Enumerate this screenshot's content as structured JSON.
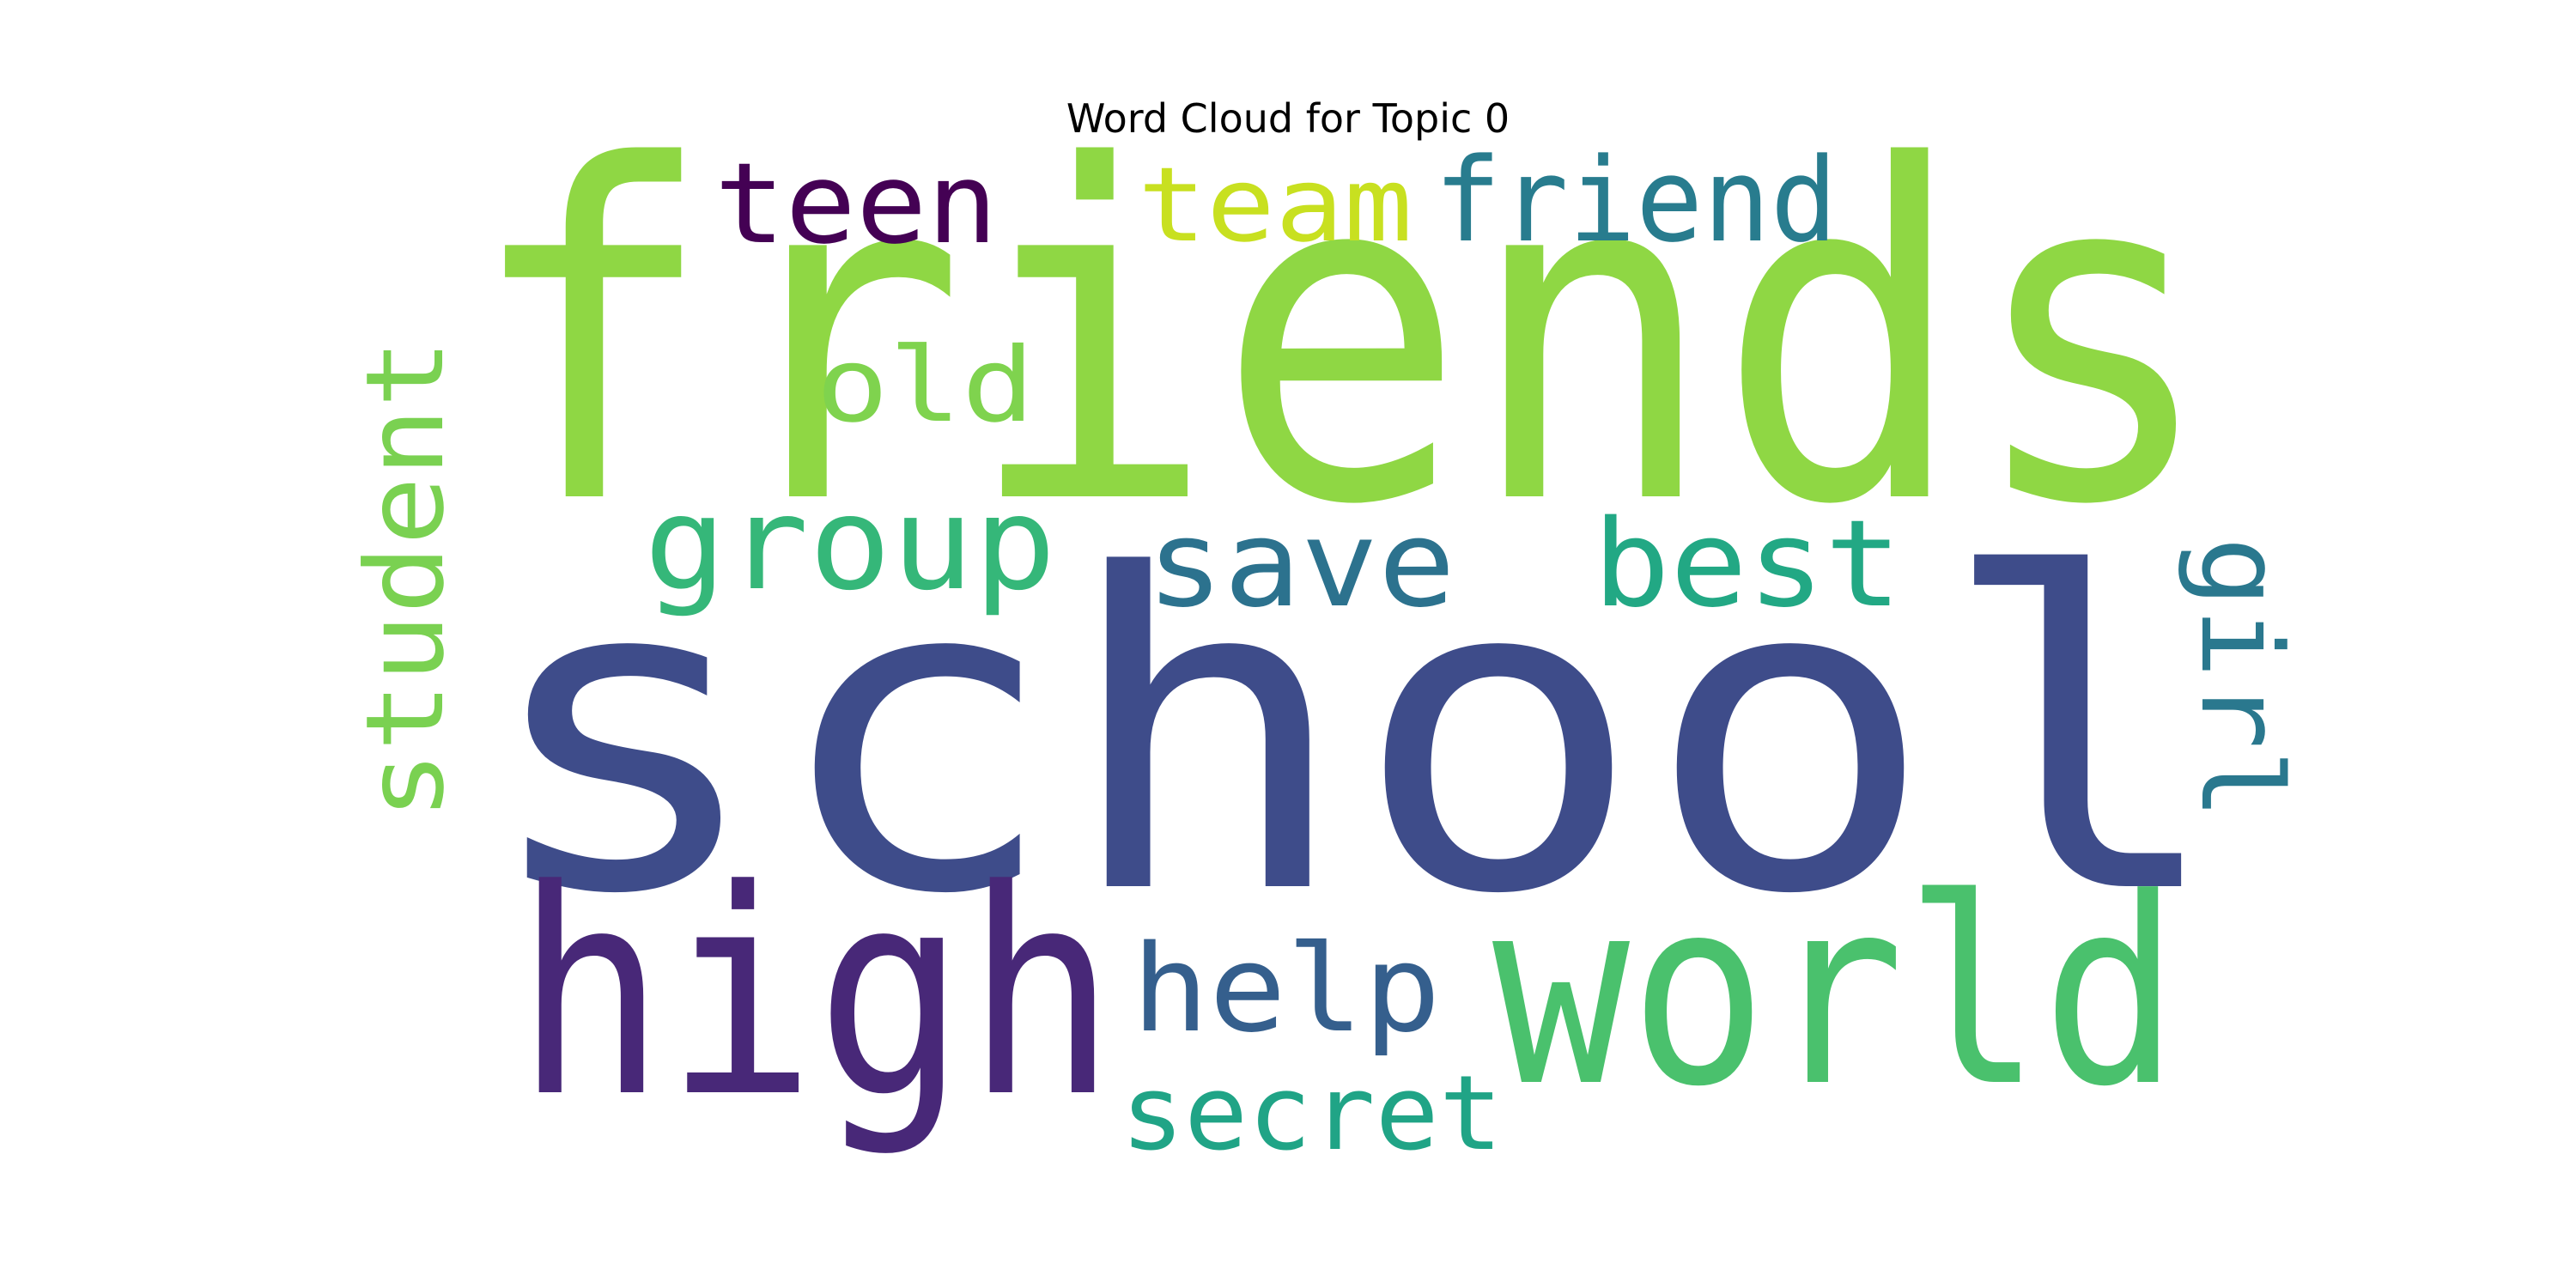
{
  "title": "Word Cloud for Topic 0",
  "words": [
    {
      "text": "friends",
      "color": "#8fd744"
    },
    {
      "text": "school",
      "color": "#3e4c8a"
    },
    {
      "text": "high",
      "color": "#482878"
    },
    {
      "text": "world",
      "color": "#4ac16d"
    },
    {
      "text": "student",
      "color": "#7ad151"
    },
    {
      "text": "group",
      "color": "#35b779"
    },
    {
      "text": "save",
      "color": "#2c728e"
    },
    {
      "text": "best",
      "color": "#22a884"
    },
    {
      "text": "help",
      "color": "#355f8d"
    },
    {
      "text": "secret",
      "color": "#20a486"
    },
    {
      "text": "teen",
      "color": "#440154"
    },
    {
      "text": "team",
      "color": "#c8e020"
    },
    {
      "text": "friend",
      "color": "#287c8e"
    },
    {
      "text": "old",
      "color": "#7fd34e"
    },
    {
      "text": "girl",
      "color": "#2a788e"
    }
  ]
}
